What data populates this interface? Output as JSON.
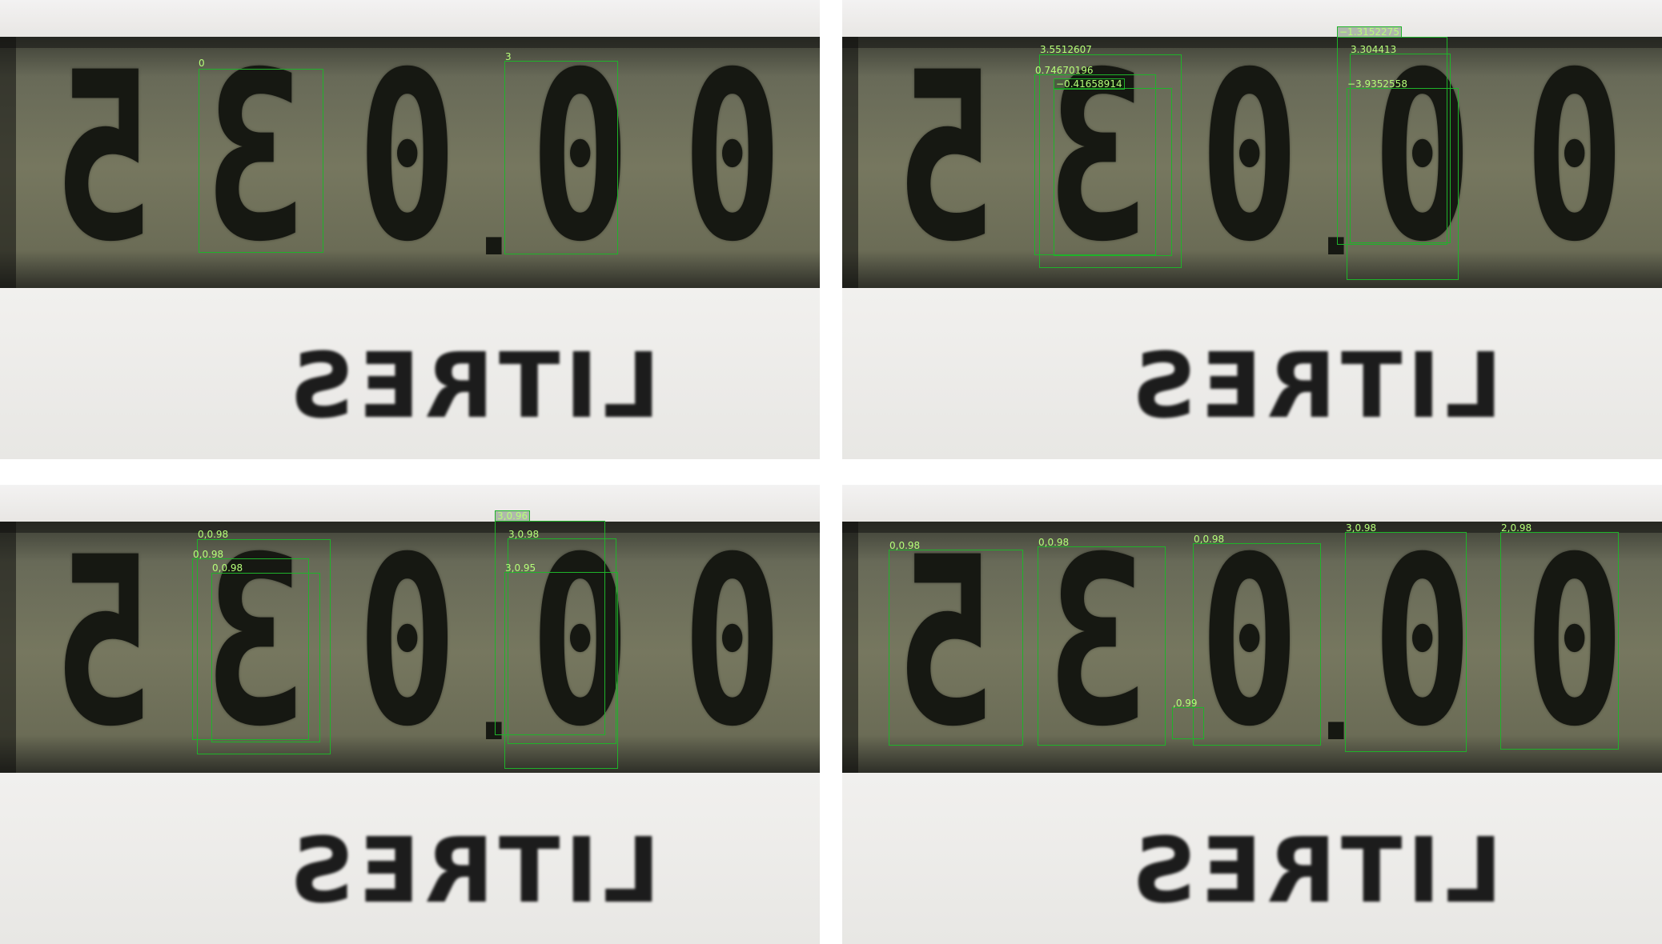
{
  "display": {
    "digits": [
      "0",
      "0",
      "3",
      "5"
    ],
    "decimal_point": ".",
    "zero_digit": "0",
    "unit": "LITRES"
  },
  "panels": {
    "top_left": {
      "labels": [
        "0",
        "3"
      ]
    },
    "top_right": {
      "labels": [
        "3.5512607",
        "0.74670196",
        "−0.41658914",
        "−1.3152275",
        "3.304413",
        "−3.9352558"
      ]
    },
    "bottom_left": {
      "labels": [
        "0,0.98",
        "0,0.98",
        "0,0.98",
        "3,0.96",
        "3,0.98",
        "3,0.95"
      ]
    },
    "bottom_right": {
      "labels": [
        "0,0.98",
        "0,0.98",
        "0,0.98",
        "3,0.98",
        "2,0.98",
        ",0.99"
      ]
    }
  },
  "colors": {
    "box_stroke": "#1fb32a",
    "label_text": "#b6ff79",
    "lcd_background": "#76775f",
    "segment": "#161812"
  }
}
